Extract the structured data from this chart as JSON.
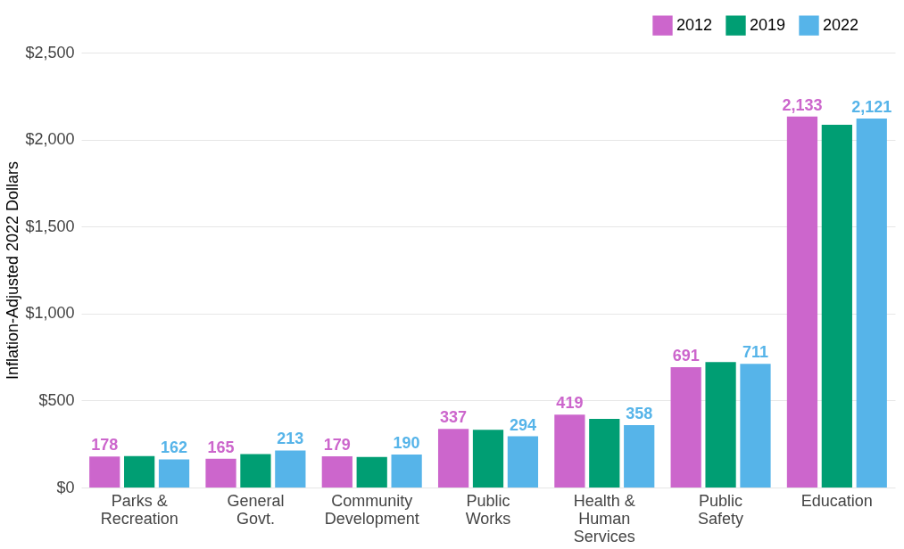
{
  "chart_data": {
    "type": "bar",
    "ylabel": "Inflation-Adjusted 2022 Dollars",
    "categories": [
      "Parks &\nRecreation",
      "General\nGovt.",
      "Community\nDevelopment",
      "Public\nWorks",
      "Health &\nHuman\nServices",
      "Public\nSafety",
      "Education"
    ],
    "series": [
      {
        "name": "2012",
        "color": "#cc66cc",
        "values": [
          178,
          165,
          179,
          337,
          419,
          691,
          2133
        ],
        "value_labels": [
          "178",
          "165",
          "179",
          "337",
          "419",
          "691",
          "2,133"
        ]
      },
      {
        "name": "2019",
        "color": "#009e73",
        "values": [
          181,
          192,
          176,
          332,
          394,
          721,
          2085
        ]
      },
      {
        "name": "2022",
        "color": "#56b4e9",
        "values": [
          162,
          213,
          190,
          294,
          358,
          711,
          2121
        ],
        "value_labels": [
          "162",
          "213",
          "190",
          "294",
          "358",
          "711",
          "2,121"
        ]
      }
    ],
    "ylim": [
      0,
      2500
    ],
    "yticks": [
      {
        "value": 0,
        "label": "$0"
      },
      {
        "value": 500,
        "label": "$500"
      },
      {
        "value": 1000,
        "label": "$1,000"
      },
      {
        "value": 1500,
        "label": "$1,500"
      },
      {
        "value": 2000,
        "label": "$2,000"
      },
      {
        "value": 2500,
        "label": "$2,500"
      }
    ],
    "grid": "y",
    "legend": "top right"
  }
}
